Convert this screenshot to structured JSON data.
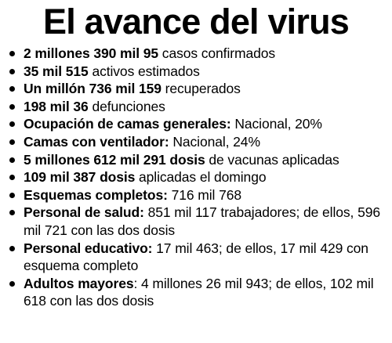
{
  "title": "El avance del virus",
  "items": [
    {
      "bold": "2 millones 390 mil 95",
      "text": " casos confirmados"
    },
    {
      "bold": "35 mil 515",
      "text": " activos estimados"
    },
    {
      "bold": "Un millón 736 mil 159",
      "text": " recuperados"
    },
    {
      "bold": "198 mil 36",
      "text": " defunciones"
    },
    {
      "bold": "Ocupación de camas generales:",
      "text": " Nacional, 20%"
    },
    {
      "bold": "Camas con ventilador:",
      "text": " Nacional, 24%"
    },
    {
      "bold": "5 millones 612 mil 291 dosis",
      "text": " de vacunas aplicadas"
    },
    {
      "bold": "109 mil 387 dosis",
      "text": " aplicadas el domingo"
    },
    {
      "bold": "Esquemas completos:",
      "text": " 716 mil 768"
    },
    {
      "bold": "Personal de salud:",
      "text": " 851 mil 117 trabajadores; de ellos, 596 mil 721 con las dos dosis"
    },
    {
      "bold": "Personal educativo:",
      "text": " 17 mil 463; de ellos, 17 mil 429 con esquema completo"
    },
    {
      "bold": "Adultos mayores",
      "text": ": 4 millones 26 mil 943; de ellos, 102 mil 618 con las dos dosis"
    }
  ]
}
